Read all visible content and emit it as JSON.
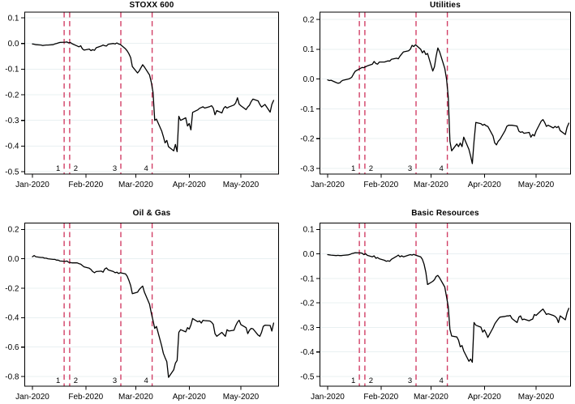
{
  "figure": {
    "kind": "2x2 small-multiple line charts of cumulative stock index returns",
    "background_color": "#ffffff"
  },
  "chart_data": {
    "type": "line",
    "title": "",
    "x_unit": "days since 1 Jan 2020",
    "x_tick_labels": [
      "Jan-2020",
      "Feb-2020",
      "Mar-2020",
      "Apr-2020",
      "May-2020"
    ],
    "x_tick_days": [
      0,
      31,
      60,
      91,
      121
    ],
    "x_range_days": [
      0,
      141
    ],
    "grid": "horizontal-only",
    "legend": "none",
    "styles": {
      "line_color": "#000000",
      "event_line_color": "#d23f66",
      "grid_color": "#e9f0f2",
      "axis_color": "#000000",
      "text_color": "#000000"
    },
    "event_lines": [
      {
        "label": "1",
        "day": 18.4,
        "label_side": "left"
      },
      {
        "label": "2",
        "day": 21.6,
        "label_side": "right"
      },
      {
        "label": "3",
        "day": 51.3,
        "label_side": "left"
      },
      {
        "label": "4",
        "day": 69.5,
        "label_side": "left"
      }
    ],
    "trading_days": [
      0,
      1,
      2,
      5,
      6,
      7,
      8,
      9,
      12,
      13,
      14,
      15,
      16,
      19,
      20,
      21,
      22,
      23,
      26,
      27,
      28,
      29,
      30,
      33,
      34,
      35,
      36,
      37,
      40,
      41,
      42,
      43,
      44,
      47,
      48,
      49,
      50,
      51,
      54,
      55,
      56,
      57,
      58,
      61,
      62,
      63,
      64,
      65,
      68,
      69,
      70,
      71,
      72,
      75,
      76,
      77,
      78,
      79,
      82,
      83,
      84,
      85,
      86,
      89,
      90,
      91,
      92,
      93,
      96,
      97,
      98,
      99,
      100,
      103,
      104,
      105,
      106,
      107,
      110,
      111,
      112,
      113,
      114,
      117,
      118,
      119,
      120,
      121,
      124,
      125,
      126,
      127,
      128,
      131,
      132,
      133,
      134,
      135,
      138,
      139,
      140
    ],
    "panels": [
      {
        "title": "STOXX 600",
        "yticks": [
          0.1,
          0.0,
          -0.1,
          -0.2,
          -0.3,
          -0.4,
          -0.5
        ],
        "ylim": [
          -0.5095,
          0.1221
        ],
        "values": [
          -0.002,
          -0.003,
          -0.005,
          -0.006,
          -0.008,
          -0.007,
          -0.006,
          -0.006,
          -0.005,
          -0.002,
          0.0,
          0.002,
          0.004,
          0.005,
          0.006,
          0.002,
          0.004,
          -0.001,
          -0.01,
          -0.013,
          -0.009,
          -0.021,
          -0.026,
          -0.022,
          -0.028,
          -0.024,
          -0.027,
          -0.017,
          -0.01,
          -0.006,
          -0.009,
          -0.01,
          -0.003,
          0.0,
          -0.002,
          0.002,
          -0.002,
          -0.004,
          -0.021,
          -0.029,
          -0.04,
          -0.055,
          -0.09,
          -0.115,
          -0.107,
          -0.095,
          -0.083,
          -0.092,
          -0.123,
          -0.152,
          -0.191,
          -0.3,
          -0.295,
          -0.341,
          -0.363,
          -0.388,
          -0.378,
          -0.403,
          -0.419,
          -0.394,
          -0.422,
          -0.284,
          -0.3,
          -0.29,
          -0.322,
          -0.312,
          -0.337,
          -0.269,
          -0.259,
          -0.253,
          -0.25,
          -0.247,
          -0.252,
          -0.246,
          -0.243,
          -0.252,
          -0.278,
          -0.262,
          -0.271,
          -0.253,
          -0.246,
          -0.252,
          -0.248,
          -0.24,
          -0.232,
          -0.212,
          -0.237,
          -0.243,
          -0.258,
          -0.248,
          -0.241,
          -0.227,
          -0.217,
          -0.224,
          -0.238,
          -0.248,
          -0.243,
          -0.238,
          -0.268,
          -0.238,
          -0.222
        ]
      },
      {
        "title": "Utilities",
        "yticks": [
          0.2,
          0.1,
          0.0,
          -0.1,
          -0.2,
          -0.3
        ],
        "ylim": [
          -0.319,
          0.2245
        ],
        "values": [
          -0.003,
          -0.005,
          -0.004,
          -0.012,
          -0.014,
          -0.013,
          -0.007,
          -0.004,
          0.0,
          0.002,
          0.006,
          0.017,
          0.026,
          0.036,
          0.039,
          0.038,
          0.041,
          0.044,
          0.05,
          0.059,
          0.052,
          0.05,
          0.057,
          0.057,
          0.059,
          0.061,
          0.06,
          0.066,
          0.07,
          0.068,
          0.077,
          0.084,
          0.091,
          0.095,
          0.1,
          0.113,
          0.109,
          0.115,
          0.1,
          0.088,
          0.095,
          0.082,
          0.086,
          0.027,
          0.041,
          0.077,
          0.104,
          0.091,
          0.036,
          0.0,
          -0.059,
          -0.209,
          -0.241,
          -0.218,
          -0.227,
          -0.215,
          -0.227,
          -0.195,
          -0.236,
          -0.259,
          -0.284,
          -0.209,
          -0.146,
          -0.15,
          -0.155,
          -0.152,
          -0.157,
          -0.159,
          -0.191,
          -0.214,
          -0.221,
          -0.209,
          -0.203,
          -0.173,
          -0.159,
          -0.155,
          -0.155,
          -0.155,
          -0.158,
          -0.175,
          -0.179,
          -0.177,
          -0.182,
          -0.179,
          -0.195,
          -0.186,
          -0.191,
          -0.175,
          -0.141,
          -0.136,
          -0.146,
          -0.159,
          -0.155,
          -0.164,
          -0.159,
          -0.163,
          -0.159,
          -0.173,
          -0.186,
          -0.162,
          -0.148
        ]
      },
      {
        "title": "Oil & Gas",
        "yticks": [
          0.2,
          0.0,
          -0.2,
          -0.4,
          -0.6,
          -0.8
        ],
        "ylim": [
          -0.866,
          0.2429
        ],
        "values": [
          0.014,
          0.022,
          0.014,
          0.009,
          0.009,
          0.004,
          0.004,
          0.0,
          -0.004,
          -0.004,
          -0.009,
          -0.009,
          -0.015,
          -0.018,
          -0.015,
          -0.024,
          -0.025,
          -0.028,
          -0.028,
          -0.033,
          -0.036,
          -0.046,
          -0.055,
          -0.064,
          -0.073,
          -0.087,
          -0.095,
          -0.087,
          -0.084,
          -0.091,
          -0.069,
          -0.062,
          -0.076,
          -0.087,
          -0.095,
          -0.091,
          -0.1,
          -0.095,
          -0.102,
          -0.118,
          -0.146,
          -0.182,
          -0.237,
          -0.227,
          -0.209,
          -0.196,
          -0.185,
          -0.227,
          -0.309,
          -0.37,
          -0.42,
          -0.473,
          -0.46,
          -0.591,
          -0.642,
          -0.672,
          -0.7,
          -0.806,
          -0.755,
          -0.709,
          -0.691,
          -0.5,
          -0.482,
          -0.497,
          -0.468,
          -0.478,
          -0.45,
          -0.406,
          -0.428,
          -0.422,
          -0.437,
          -0.418,
          -0.42,
          -0.423,
          -0.431,
          -0.446,
          -0.509,
          -0.527,
          -0.5,
          -0.515,
          -0.527,
          -0.482,
          -0.491,
          -0.486,
          -0.455,
          -0.431,
          -0.418,
          -0.447,
          -0.468,
          -0.509,
          -0.486,
          -0.473,
          -0.476,
          -0.518,
          -0.527,
          -0.5,
          -0.46,
          -0.451,
          -0.453,
          -0.491,
          -0.437
        ]
      },
      {
        "title": "Basic Resources",
        "yticks": [
          0.1,
          0.0,
          -0.1,
          -0.2,
          -0.3,
          -0.4,
          -0.5
        ],
        "ylim": [
          -0.5397,
          0.1258
        ],
        "values": [
          -0.003,
          -0.004,
          -0.005,
          -0.007,
          -0.006,
          -0.007,
          -0.007,
          -0.006,
          -0.004,
          -0.002,
          0.001,
          0.003,
          0.005,
          0.004,
          0.003,
          -0.003,
          0.001,
          -0.006,
          -0.012,
          -0.008,
          -0.018,
          -0.015,
          -0.02,
          -0.026,
          -0.03,
          -0.028,
          -0.03,
          -0.022,
          -0.01,
          -0.005,
          -0.012,
          -0.008,
          -0.012,
          -0.005,
          -0.003,
          -0.005,
          -0.002,
          -0.005,
          -0.012,
          -0.022,
          -0.042,
          -0.075,
          -0.125,
          -0.112,
          -0.105,
          -0.092,
          -0.088,
          -0.098,
          -0.135,
          -0.175,
          -0.215,
          -0.308,
          -0.335,
          -0.339,
          -0.352,
          -0.379,
          -0.374,
          -0.396,
          -0.438,
          -0.429,
          -0.442,
          -0.28,
          -0.291,
          -0.299,
          -0.319,
          -0.31,
          -0.324,
          -0.341,
          -0.302,
          -0.286,
          -0.275,
          -0.266,
          -0.258,
          -0.255,
          -0.253,
          -0.253,
          -0.251,
          -0.264,
          -0.28,
          -0.258,
          -0.253,
          -0.269,
          -0.266,
          -0.273,
          -0.269,
          -0.266,
          -0.247,
          -0.251,
          -0.231,
          -0.225,
          -0.236,
          -0.247,
          -0.244,
          -0.251,
          -0.255,
          -0.262,
          -0.28,
          -0.253,
          -0.269,
          -0.24,
          -0.222
        ]
      }
    ]
  }
}
